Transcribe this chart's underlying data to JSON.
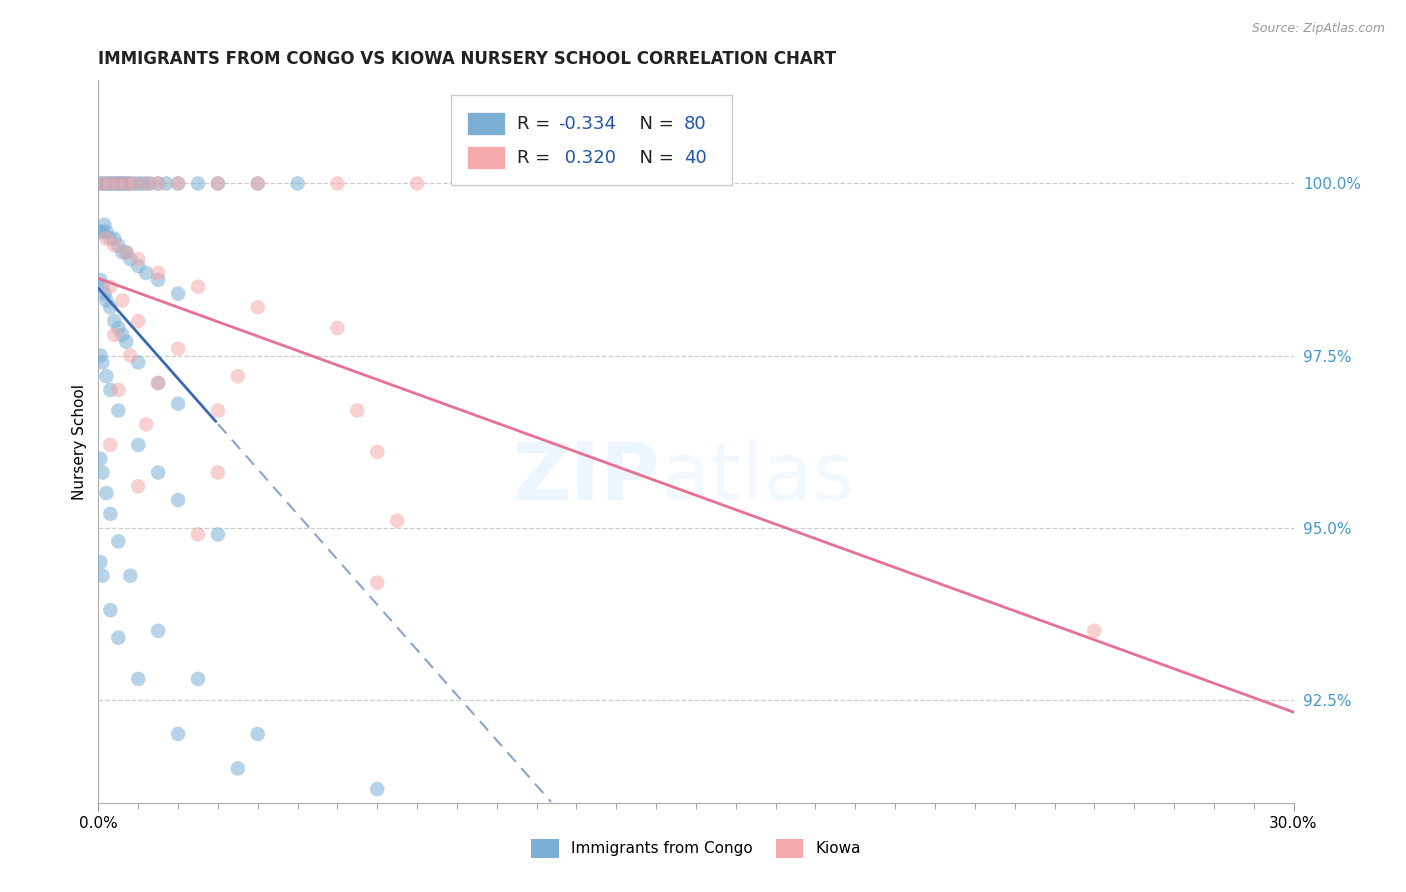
{
  "title": "IMMIGRANTS FROM CONGO VS KIOWA NURSERY SCHOOL CORRELATION CHART",
  "source": "Source: ZipAtlas.com",
  "ylabel": "Nursery School",
  "ytick_values": [
    100.0,
    97.5,
    95.0,
    92.5
  ],
  "xlim": [
    0.0,
    30.0
  ],
  "ylim": [
    91.0,
    101.5
  ],
  "legend1_label": "Immigrants from Congo",
  "legend2_label": "Kiowa",
  "R1": -0.334,
  "N1": 80,
  "R2": 0.32,
  "N2": 40,
  "color_blue": "#7BAFD4",
  "color_pink": "#F4AAAA",
  "color_blue_line": "#3A68B0",
  "color_pink_line": "#E87090",
  "blue_x": [
    0.05,
    0.1,
    0.15,
    0.2,
    0.25,
    0.3,
    0.35,
    0.4,
    0.45,
    0.5,
    0.5,
    0.55,
    0.6,
    0.65,
    0.7,
    0.75,
    0.8,
    0.9,
    1.0,
    1.1,
    1.2,
    1.3,
    1.5,
    1.7,
    2.0,
    2.5,
    3.0,
    4.0,
    5.0,
    0.05,
    0.1,
    0.15,
    0.2,
    0.3,
    0.4,
    0.5,
    0.6,
    0.7,
    0.8,
    1.0,
    1.2,
    1.5,
    2.0,
    0.05,
    0.1,
    0.15,
    0.2,
    0.3,
    0.4,
    0.5,
    0.6,
    0.7,
    1.0,
    1.5,
    2.0,
    0.05,
    0.1,
    0.2,
    0.3,
    0.5,
    1.0,
    1.5,
    2.0,
    3.0,
    0.05,
    0.1,
    0.2,
    0.3,
    0.5,
    0.8,
    1.5,
    2.5,
    4.0,
    0.05,
    0.1,
    0.3,
    0.5,
    1.0,
    2.0,
    3.5,
    7.0
  ],
  "blue_y": [
    100.0,
    100.0,
    100.0,
    100.0,
    100.0,
    100.0,
    100.0,
    100.0,
    100.0,
    100.0,
    100.0,
    100.0,
    100.0,
    100.0,
    100.0,
    100.0,
    100.0,
    100.0,
    100.0,
    100.0,
    100.0,
    100.0,
    100.0,
    100.0,
    100.0,
    100.0,
    100.0,
    100.0,
    100.0,
    99.3,
    99.3,
    99.4,
    99.3,
    99.2,
    99.2,
    99.1,
    99.0,
    99.0,
    98.9,
    98.8,
    98.7,
    98.6,
    98.4,
    98.6,
    98.5,
    98.4,
    98.3,
    98.2,
    98.0,
    97.9,
    97.8,
    97.7,
    97.4,
    97.1,
    96.8,
    97.5,
    97.4,
    97.2,
    97.0,
    96.7,
    96.2,
    95.8,
    95.4,
    94.9,
    96.0,
    95.8,
    95.5,
    95.2,
    94.8,
    94.3,
    93.5,
    92.8,
    92.0,
    94.5,
    94.3,
    93.8,
    93.4,
    92.8,
    92.0,
    91.5,
    91.2
  ],
  "pink_x": [
    0.1,
    0.3,
    0.5,
    0.7,
    0.9,
    1.2,
    1.5,
    2.0,
    3.0,
    4.0,
    6.0,
    8.0,
    0.2,
    0.4,
    0.7,
    1.0,
    1.5,
    2.5,
    4.0,
    6.0,
    0.3,
    0.6,
    1.0,
    2.0,
    3.5,
    6.5,
    0.4,
    0.8,
    1.5,
    3.0,
    7.0,
    0.5,
    1.2,
    3.0,
    7.5,
    0.3,
    1.0,
    2.5,
    7.0,
    25.0
  ],
  "pink_y": [
    100.0,
    100.0,
    100.0,
    100.0,
    100.0,
    100.0,
    100.0,
    100.0,
    100.0,
    100.0,
    100.0,
    100.0,
    99.2,
    99.1,
    99.0,
    98.9,
    98.7,
    98.5,
    98.2,
    97.9,
    98.5,
    98.3,
    98.0,
    97.6,
    97.2,
    96.7,
    97.8,
    97.5,
    97.1,
    96.7,
    96.1,
    97.0,
    96.5,
    95.8,
    95.1,
    96.2,
    95.6,
    94.9,
    94.2,
    93.5
  ]
}
